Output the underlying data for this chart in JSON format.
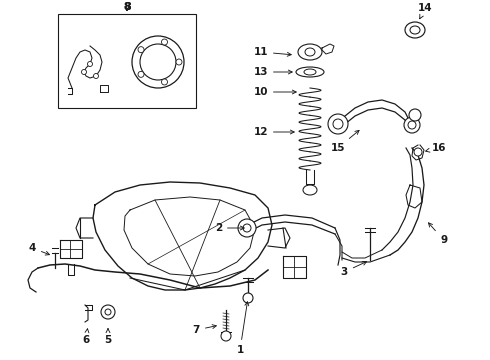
{
  "background_color": "#ffffff",
  "line_color": "#1a1a1a",
  "border_color": "#1a1a1a",
  "fig_width": 4.9,
  "fig_height": 3.6,
  "dpi": 100
}
